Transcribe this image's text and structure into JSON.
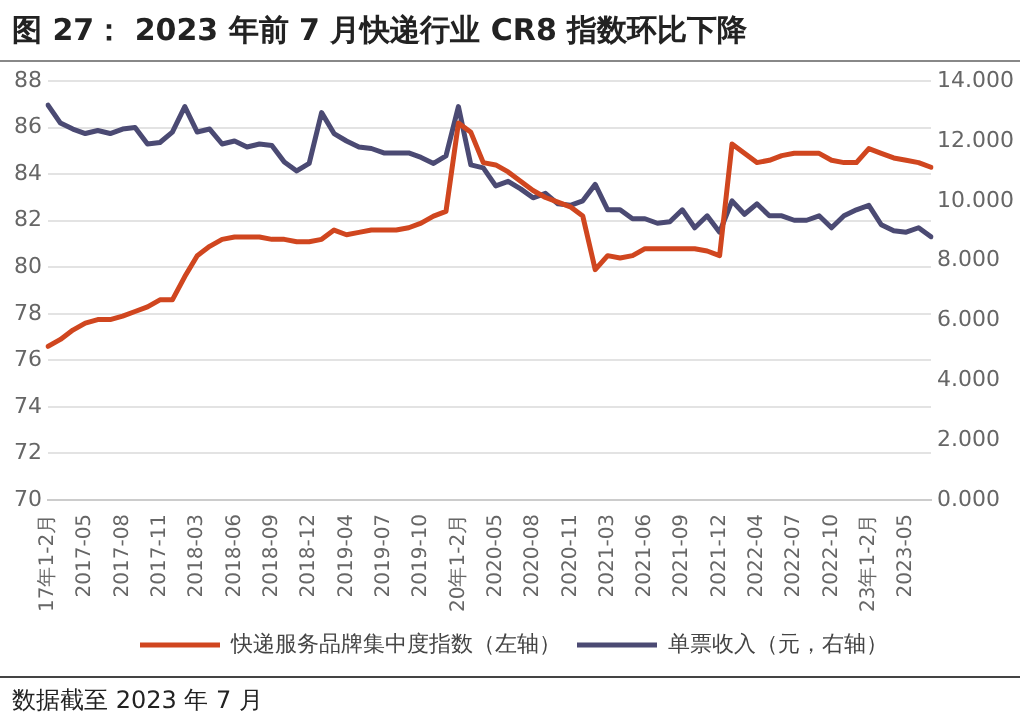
{
  "chart_data": {
    "type": "line",
    "title": "图 27： 2023 年前 7 月快递行业 CR8 指数环比下降",
    "categories": [
      "17年1-2月",
      null,
      null,
      "2017-05",
      null,
      null,
      "2017-08",
      null,
      null,
      "2017-11",
      null,
      null,
      "2018-03",
      null,
      null,
      "2018-06",
      null,
      null,
      "2018-09",
      null,
      null,
      "2018-12",
      null,
      null,
      "2019-04",
      null,
      null,
      "2019-07",
      null,
      null,
      "2019-10",
      null,
      null,
      "20年1-2月",
      null,
      null,
      "2020-05",
      null,
      null,
      "2020-08",
      null,
      null,
      "2020-11",
      null,
      null,
      "2021-03",
      null,
      null,
      "2021-06",
      null,
      null,
      "2021-09",
      null,
      null,
      "2021-12",
      null,
      null,
      "2022-04",
      null,
      null,
      "2022-07",
      null,
      null,
      "2022-10",
      null,
      null,
      "23年1-2月",
      null,
      null,
      "2023-05",
      null,
      null
    ],
    "series": [
      {
        "name": "快递服务品牌集中度指数（左轴）",
        "color": "#d0461f",
        "values": [
          76.6,
          76.9,
          77.3,
          77.6,
          77.75,
          77.75,
          77.9,
          78.1,
          78.3,
          78.6,
          78.6,
          79.6,
          80.5,
          80.9,
          81.2,
          81.3,
          81.3,
          81.3,
          81.2,
          81.2,
          81.1,
          81.1,
          81.2,
          81.6,
          81.4,
          81.5,
          81.6,
          81.6,
          81.6,
          81.7,
          81.9,
          82.2,
          82.4,
          86.2,
          85.8,
          84.5,
          84.4,
          84.1,
          83.7,
          83.3,
          83.0,
          82.8,
          82.6,
          82.2,
          79.9,
          80.5,
          80.4,
          80.5,
          80.8,
          80.8,
          80.8,
          80.8,
          80.8,
          80.7,
          80.5,
          85.3,
          84.9,
          84.5,
          84.6,
          84.8,
          84.9,
          84.9,
          84.9,
          84.6,
          84.5,
          84.5,
          85.1,
          84.9,
          84.7,
          84.6,
          84.5,
          84.3
        ]
      },
      {
        "name": "单票收入（元，右轴）",
        "color": "#4b4a73",
        "axis": "y2",
        "values": [
          13.2,
          12.6,
          12.4,
          12.25,
          12.35,
          12.25,
          12.4,
          12.45,
          11.9,
          11.95,
          12.3,
          13.15,
          12.3,
          12.4,
          11.9,
          12.0,
          11.8,
          11.9,
          11.85,
          11.3,
          11.0,
          11.25,
          12.95,
          12.25,
          12.0,
          11.8,
          11.75,
          11.6,
          11.6,
          11.6,
          11.45,
          11.25,
          11.5,
          13.15,
          11.2,
          11.1,
          10.5,
          10.65,
          10.4,
          10.1,
          10.25,
          9.9,
          9.85,
          10.0,
          10.55,
          9.7,
          9.7,
          9.4,
          9.4,
          9.25,
          9.3,
          9.7,
          9.1,
          9.5,
          8.95,
          10.0,
          9.55,
          9.9,
          9.5,
          9.5,
          9.35,
          9.35,
          9.5,
          9.1,
          9.5,
          9.7,
          9.85,
          9.2,
          9.0,
          8.95,
          9.1,
          8.8
        ]
      }
    ],
    "ylim": [
      70,
      88
    ],
    "yticks": [
      70,
      72,
      74,
      76,
      78,
      80,
      82,
      84,
      86,
      88
    ],
    "y2lim": [
      0,
      14
    ],
    "y2ticks": [
      {
        "value": 0,
        "label": "0.000"
      },
      {
        "value": 2,
        "label": "2.000"
      },
      {
        "value": 4,
        "label": "4.000"
      },
      {
        "value": 6,
        "label": "6.000"
      },
      {
        "value": 8,
        "label": "8.000"
      },
      {
        "value": 10,
        "label": "10.000"
      },
      {
        "value": 12,
        "label": "12.000"
      },
      {
        "value": 14,
        "label": "14.000"
      }
    ],
    "grid": "y",
    "legend": "bottom",
    "marker": "none",
    "line_style": "solid",
    "annotations": [
      "数据截至 2023 年 7 月"
    ]
  }
}
